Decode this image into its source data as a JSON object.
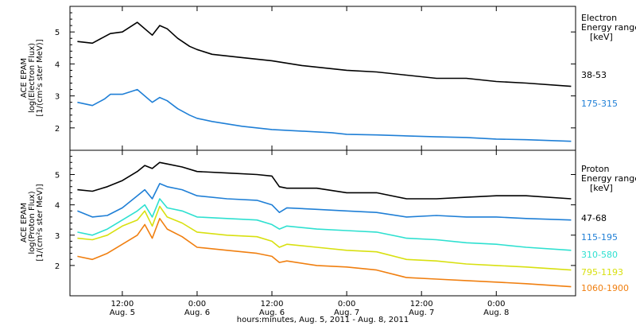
{
  "figure": {
    "x_axis_title": "hours:minutes, Aug.  5, 2011 - Aug.  8, 2011",
    "x_ticks": [
      {
        "t": 0.5,
        "time": "12:00",
        "day": "Aug. 5"
      },
      {
        "t": 1.0,
        "time": "0:00",
        "day": "Aug. 6"
      },
      {
        "t": 1.5,
        "time": "12:00",
        "day": "Aug. 6"
      },
      {
        "t": 2.0,
        "time": "0:00",
        "day": "Aug. 7"
      },
      {
        "t": 2.5,
        "time": "12:00",
        "day": "Aug. 7"
      },
      {
        "t": 3.0,
        "time": "0:00",
        "day": "Aug. 8"
      }
    ],
    "x_range_days_from_aug5": [
      0.15,
      3.53
    ]
  },
  "chart_data": [
    {
      "type": "line",
      "panel": "electron",
      "ylabel_lines": [
        "ACE EPAM",
        "log(Electron Flux)",
        "[1/(cm²s ster MeV)]"
      ],
      "ylim": [
        1.3,
        5.8
      ],
      "yticks": [
        "2",
        "3",
        "4",
        "5"
      ],
      "legend_header": [
        "Electron",
        "Energy range",
        "[keV]"
      ],
      "series": [
        {
          "name": "38-53",
          "color": "#000000",
          "x": [
            0.2,
            0.3,
            0.38,
            0.42,
            0.5,
            0.6,
            0.7,
            0.75,
            0.8,
            0.87,
            0.95,
            1.0,
            1.1,
            1.3,
            1.5,
            1.7,
            1.9,
            2.0,
            2.2,
            2.4,
            2.6,
            2.8,
            3.0,
            3.2,
            3.5
          ],
          "y": [
            4.7,
            4.65,
            4.85,
            4.95,
            5.0,
            5.3,
            4.9,
            5.2,
            5.1,
            4.8,
            4.55,
            4.45,
            4.3,
            4.2,
            4.1,
            3.95,
            3.85,
            3.8,
            3.75,
            3.65,
            3.55,
            3.55,
            3.45,
            3.4,
            3.3
          ]
        },
        {
          "name": "175-315",
          "color": "#1f7fd6",
          "x": [
            0.2,
            0.3,
            0.38,
            0.42,
            0.5,
            0.6,
            0.7,
            0.75,
            0.8,
            0.87,
            0.95,
            1.0,
            1.1,
            1.3,
            1.5,
            1.7,
            1.9,
            2.0,
            2.2,
            2.4,
            2.6,
            2.8,
            3.0,
            3.2,
            3.5
          ],
          "y": [
            2.8,
            2.7,
            2.9,
            3.05,
            3.05,
            3.2,
            2.8,
            2.95,
            2.85,
            2.6,
            2.4,
            2.3,
            2.2,
            2.05,
            1.95,
            1.9,
            1.85,
            1.8,
            1.78,
            1.75,
            1.72,
            1.7,
            1.65,
            1.63,
            1.58
          ]
        }
      ]
    },
    {
      "type": "line",
      "panel": "proton",
      "ylabel_lines": [
        "ACE EPAM",
        "log(Proton Flux)",
        "[1/(cm²s ster MeV)]"
      ],
      "ylim": [
        1.0,
        5.8
      ],
      "yticks": [
        "2",
        "3",
        "4",
        "5"
      ],
      "legend_header": [
        "Proton",
        "Energy range",
        "[keV]"
      ],
      "series": [
        {
          "name": "47-68",
          "color": "#000000",
          "x": [
            0.2,
            0.3,
            0.4,
            0.5,
            0.6,
            0.65,
            0.7,
            0.75,
            0.8,
            0.9,
            1.0,
            1.2,
            1.4,
            1.5,
            1.55,
            1.6,
            1.8,
            2.0,
            2.2,
            2.4,
            2.6,
            2.8,
            3.0,
            3.2,
            3.5
          ],
          "y": [
            4.5,
            4.45,
            4.6,
            4.8,
            5.1,
            5.3,
            5.2,
            5.4,
            5.35,
            5.25,
            5.1,
            5.05,
            5.0,
            4.95,
            4.6,
            4.55,
            4.55,
            4.4,
            4.4,
            4.2,
            4.2,
            4.25,
            4.3,
            4.3,
            4.2
          ]
        },
        {
          "name": "115-195",
          "color": "#1f7fd6",
          "x": [
            0.2,
            0.3,
            0.4,
            0.5,
            0.6,
            0.65,
            0.7,
            0.75,
            0.8,
            0.9,
            1.0,
            1.2,
            1.4,
            1.5,
            1.55,
            1.6,
            1.8,
            2.0,
            2.2,
            2.4,
            2.6,
            2.8,
            3.0,
            3.2,
            3.5
          ],
          "y": [
            3.8,
            3.6,
            3.65,
            3.9,
            4.3,
            4.5,
            4.2,
            4.7,
            4.6,
            4.5,
            4.3,
            4.2,
            4.15,
            4.0,
            3.75,
            3.9,
            3.85,
            3.8,
            3.75,
            3.6,
            3.65,
            3.6,
            3.6,
            3.55,
            3.5
          ]
        },
        {
          "name": "310-580",
          "color": "#2ee0d0",
          "x": [
            0.2,
            0.3,
            0.4,
            0.5,
            0.6,
            0.65,
            0.7,
            0.75,
            0.8,
            0.9,
            1.0,
            1.2,
            1.4,
            1.5,
            1.55,
            1.6,
            1.8,
            2.0,
            2.2,
            2.4,
            2.6,
            2.8,
            3.0,
            3.2,
            3.5
          ],
          "y": [
            3.1,
            3.0,
            3.2,
            3.5,
            3.8,
            4.0,
            3.6,
            4.2,
            3.9,
            3.8,
            3.6,
            3.55,
            3.5,
            3.35,
            3.2,
            3.3,
            3.2,
            3.15,
            3.1,
            2.9,
            2.85,
            2.75,
            2.7,
            2.6,
            2.5
          ]
        },
        {
          "name": "795-1193",
          "color": "#d8e010",
          "x": [
            0.2,
            0.3,
            0.4,
            0.5,
            0.6,
            0.65,
            0.7,
            0.75,
            0.8,
            0.9,
            1.0,
            1.2,
            1.4,
            1.5,
            1.55,
            1.6,
            1.8,
            2.0,
            2.2,
            2.4,
            2.6,
            2.8,
            3.0,
            3.2,
            3.5
          ],
          "y": [
            2.9,
            2.85,
            3.0,
            3.3,
            3.5,
            3.8,
            3.3,
            3.95,
            3.6,
            3.4,
            3.1,
            3.0,
            2.95,
            2.8,
            2.6,
            2.7,
            2.6,
            2.5,
            2.45,
            2.2,
            2.15,
            2.05,
            2.0,
            1.95,
            1.85
          ]
        },
        {
          "name": "1060-1900",
          "color": "#f07f10",
          "x": [
            0.2,
            0.3,
            0.4,
            0.5,
            0.6,
            0.65,
            0.7,
            0.75,
            0.8,
            0.9,
            1.0,
            1.2,
            1.4,
            1.5,
            1.55,
            1.6,
            1.8,
            2.0,
            2.2,
            2.4,
            2.6,
            2.8,
            3.0,
            3.2,
            3.5
          ],
          "y": [
            2.3,
            2.2,
            2.4,
            2.7,
            3.0,
            3.35,
            2.9,
            3.55,
            3.2,
            2.95,
            2.6,
            2.5,
            2.4,
            2.3,
            2.1,
            2.15,
            2.0,
            1.95,
            1.85,
            1.6,
            1.55,
            1.5,
            1.45,
            1.4,
            1.3
          ]
        }
      ]
    }
  ]
}
